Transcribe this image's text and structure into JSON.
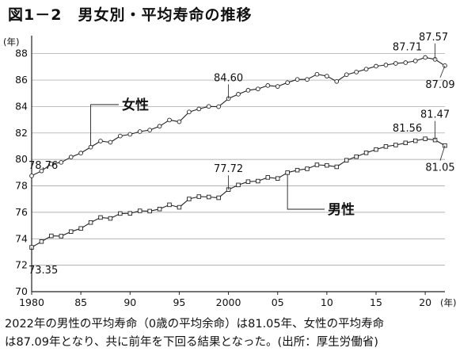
{
  "figure_title": "図1－2　男女別・平均寿命の推移",
  "caption": {
    "line1": "2022年の男性の平均寿命（0歳の平均余命）は81.05年、女性の平均寿命",
    "line2": "は87.09年となり、共に前年を下回る結果となった。(出所：厚生労働省)"
  },
  "chart_data": {
    "type": "line",
    "title": "男女別・平均寿命の推移",
    "y_unit": "(年)",
    "x_unit": "(年)",
    "ylim": [
      70,
      89
    ],
    "y_ticks": [
      70,
      72,
      74,
      76,
      78,
      80,
      82,
      84,
      86,
      88
    ],
    "xlim": [
      1980,
      2022
    ],
    "x_ticks": [
      {
        "year": 1980,
        "label": "1980"
      },
      {
        "year": 1985,
        "label": "85"
      },
      {
        "year": 1990,
        "label": "90"
      },
      {
        "year": 1995,
        "label": "95"
      },
      {
        "year": 2000,
        "label": "2000"
      },
      {
        "year": 2005,
        "label": "05"
      },
      {
        "year": 2010,
        "label": "10"
      },
      {
        "year": 2015,
        "label": "15"
      },
      {
        "year": 2020,
        "label": "20"
      }
    ],
    "x": [
      1980,
      1981,
      1982,
      1983,
      1984,
      1985,
      1986,
      1987,
      1988,
      1989,
      1990,
      1991,
      1992,
      1993,
      1994,
      1995,
      1996,
      1997,
      1998,
      1999,
      2000,
      2001,
      2002,
      2003,
      2004,
      2005,
      2006,
      2007,
      2008,
      2009,
      2010,
      2011,
      2012,
      2013,
      2014,
      2015,
      2016,
      2017,
      2018,
      2019,
      2020,
      2021,
      2022
    ],
    "series": [
      {
        "name": "女性",
        "marker": "circle",
        "values": [
          78.76,
          79.13,
          79.66,
          79.78,
          80.18,
          80.48,
          80.93,
          81.39,
          81.3,
          81.77,
          81.9,
          82.11,
          82.22,
          82.51,
          82.98,
          82.85,
          83.59,
          83.82,
          84.01,
          83.99,
          84.6,
          84.93,
          85.23,
          85.33,
          85.59,
          85.52,
          85.81,
          86.05,
          86.05,
          86.44,
          86.3,
          85.9,
          86.41,
          86.61,
          86.83,
          87.05,
          87.14,
          87.26,
          87.32,
          87.45,
          87.71,
          87.57,
          87.09
        ],
        "labels": [
          {
            "text": "78.76",
            "x": 1980
          },
          {
            "text": "84.60",
            "x": 2000
          },
          {
            "text": "87.71",
            "x": 2020
          },
          {
            "text": "87.57",
            "x": 2021
          },
          {
            "text": "87.09",
            "x": 2022
          }
        ]
      },
      {
        "name": "男性",
        "marker": "square",
        "values": [
          73.35,
          73.79,
          74.22,
          74.2,
          74.54,
          74.78,
          75.23,
          75.61,
          75.54,
          75.91,
          75.92,
          76.11,
          76.09,
          76.25,
          76.57,
          76.38,
          77.01,
          77.19,
          77.16,
          77.1,
          77.72,
          78.07,
          78.32,
          78.36,
          78.64,
          78.56,
          79.0,
          79.19,
          79.29,
          79.59,
          79.55,
          79.44,
          79.94,
          80.21,
          80.5,
          80.75,
          80.98,
          81.09,
          81.25,
          81.41,
          81.56,
          81.47,
          81.05
        ],
        "labels": [
          {
            "text": "73.35",
            "x": 1980
          },
          {
            "text": "77.72",
            "x": 2000
          },
          {
            "text": "81.56",
            "x": 2020
          },
          {
            "text": "81.47",
            "x": 2021
          },
          {
            "text": "81.05",
            "x": 2022
          }
        ]
      }
    ],
    "grid": {
      "horizontal": true,
      "vertical": false
    },
    "line_color": "#222222",
    "grid_color": "#9a9a9a"
  }
}
